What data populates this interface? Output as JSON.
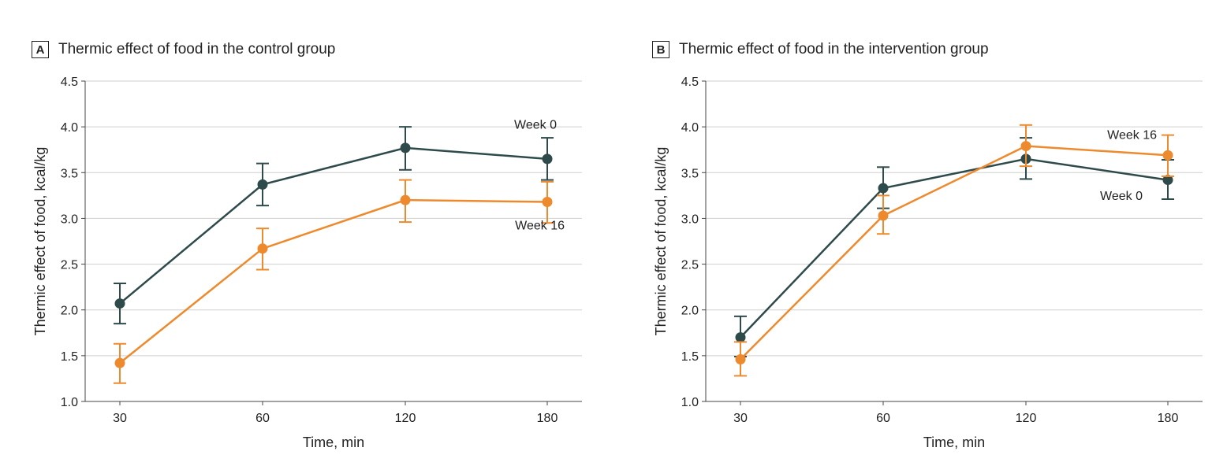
{
  "chart_data": [
    {
      "type": "line",
      "panel_label": "A",
      "title": "Thermic effect of food in the control group",
      "xlabel": "Time, min",
      "ylabel": "Thermic effect of food, kcal/kg",
      "categories": [
        "30",
        "60",
        "120",
        "180"
      ],
      "ylim": [
        1.0,
        4.5
      ],
      "yticks": [
        "1.0",
        "1.5",
        "2.0",
        "2.5",
        "3.0",
        "3.5",
        "4.0",
        "4.5"
      ],
      "grid": true,
      "series": [
        {
          "name": "Week 0",
          "color": "#2e4a4b",
          "values": [
            2.07,
            3.37,
            3.77,
            3.65
          ],
          "lower": [
            1.85,
            3.14,
            3.53,
            3.42
          ],
          "upper": [
            2.29,
            3.6,
            4.0,
            3.88
          ]
        },
        {
          "name": "Week 16",
          "color": "#ee8a2e",
          "values": [
            1.42,
            2.67,
            3.2,
            3.18
          ],
          "lower": [
            1.2,
            2.44,
            2.96,
            2.95
          ],
          "upper": [
            1.63,
            2.89,
            3.42,
            3.4
          ]
        }
      ]
    },
    {
      "type": "line",
      "panel_label": "B",
      "title": "Thermic effect of food in the intervention group",
      "xlabel": "Time, min",
      "ylabel": "Thermic effect of food, kcal/kg",
      "categories": [
        "30",
        "60",
        "120",
        "180"
      ],
      "ylim": [
        1.0,
        4.5
      ],
      "yticks": [
        "1.0",
        "1.5",
        "2.0",
        "2.5",
        "3.0",
        "3.5",
        "4.0",
        "4.5"
      ],
      "grid": true,
      "series": [
        {
          "name": "Week 0",
          "color": "#2e4a4b",
          "values": [
            1.7,
            3.33,
            3.65,
            3.42
          ],
          "lower": [
            1.49,
            3.11,
            3.43,
            3.21
          ],
          "upper": [
            1.93,
            3.56,
            3.88,
            3.64
          ]
        },
        {
          "name": "Week 16",
          "color": "#ee8a2e",
          "values": [
            1.46,
            3.03,
            3.79,
            3.69
          ],
          "lower": [
            1.28,
            2.83,
            3.57,
            3.46
          ],
          "upper": [
            1.65,
            3.25,
            4.02,
            3.91
          ]
        }
      ]
    }
  ]
}
